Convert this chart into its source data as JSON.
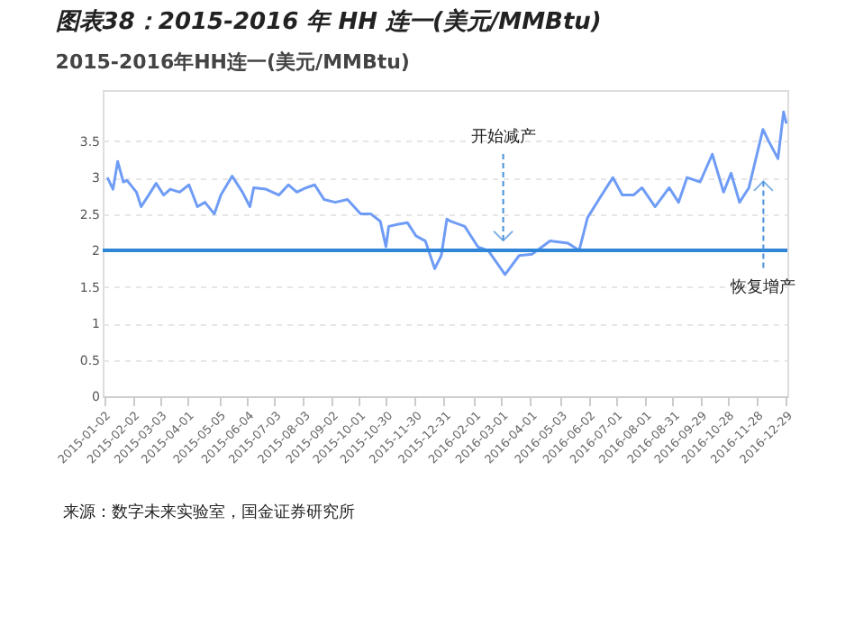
{
  "chart_data": {
    "type": "line",
    "title": "图表38：2015-2016 年 HH 连一(美元/MMBtu)",
    "subtitle": "2015-2016年HH连一(美元/MMBtu)",
    "x": [
      "2015-01-06",
      "2015-01-12",
      "2015-01-17",
      "2015-01-23",
      "2015-01-27",
      "2015-02-06",
      "2015-02-11",
      "2015-02-19",
      "2015-02-27",
      "2015-03-07",
      "2015-03-14",
      "2015-03-24",
      "2015-04-03",
      "2015-04-12",
      "2015-04-20",
      "2015-04-30",
      "2015-05-07",
      "2015-05-19",
      "2015-05-30",
      "2015-06-07",
      "2015-06-11",
      "2015-06-24",
      "2015-07-08",
      "2015-07-18",
      "2015-07-27",
      "2015-08-06",
      "2015-08-15",
      "2015-08-25",
      "2015-09-06",
      "2015-09-19",
      "2015-10-03",
      "2015-10-14",
      "2015-10-24",
      "2015-10-30",
      "2015-11-02",
      "2015-11-12",
      "2015-11-22",
      "2015-12-01",
      "2015-12-11",
      "2015-12-21",
      "2015-12-28",
      "2016-01-03",
      "2016-01-07",
      "2016-01-22",
      "2016-02-05",
      "2016-02-16",
      "2016-03-05",
      "2016-03-20",
      "2016-04-03",
      "2016-04-22",
      "2016-05-11",
      "2016-05-23",
      "2016-06-01",
      "2016-06-15",
      "2016-06-28",
      "2016-07-08",
      "2016-07-20",
      "2016-07-29",
      "2016-08-12",
      "2016-08-27",
      "2016-09-06",
      "2016-09-15",
      "2016-09-29",
      "2016-10-12",
      "2016-10-24",
      "2016-11-01",
      "2016-11-10",
      "2016-11-20",
      "2016-12-05",
      "2016-12-11",
      "2016-12-21",
      "2016-12-27",
      "2016-12-30"
    ],
    "series": [
      {
        "color": "#6f9cf5",
        "values": [
          3.0,
          2.84,
          3.22,
          2.94,
          2.96,
          2.8,
          2.6,
          2.76,
          2.92,
          2.76,
          2.84,
          2.8,
          2.9,
          2.6,
          2.66,
          2.5,
          2.76,
          3.02,
          2.8,
          2.6,
          2.86,
          2.84,
          2.76,
          2.9,
          2.8,
          2.86,
          2.9,
          2.7,
          2.66,
          2.7,
          2.5,
          2.5,
          2.4,
          2.05,
          2.33,
          2.36,
          2.38,
          2.2,
          2.13,
          1.75,
          1.93,
          2.43,
          2.4,
          2.33,
          2.05,
          2.0,
          1.67,
          1.93,
          1.95,
          2.13,
          2.1,
          2.0,
          2.45,
          2.74,
          3.0,
          2.76,
          2.76,
          2.86,
          2.6,
          2.86,
          2.66,
          3.0,
          2.94,
          3.32,
          2.8,
          3.06,
          2.66,
          2.86,
          3.66,
          3.5,
          3.26,
          3.9,
          3.74
        ]
      }
    ],
    "xlim": [
      "2015-01-01",
      "2016-12-31"
    ],
    "xticks": [
      "2015-01-02",
      "2015-02-02",
      "2015-03-03",
      "2015-04-01",
      "2015-05-05",
      "2015-06-04",
      "2015-07-03",
      "2015-08-03",
      "2015-09-02",
      "2015-10-01",
      "2015-10-30",
      "2015-11-30",
      "2015-12-31",
      "2016-02-01",
      "2016-03-01",
      "2016-04-01",
      "2016-05-03",
      "2016-06-02",
      "2016-07-01",
      "2016-08-01",
      "2016-08-31",
      "2016-09-29",
      "2016-10-28",
      "2016-11-28",
      "2016-12-29"
    ],
    "ylim": [
      0,
      4.2
    ],
    "yticks": [
      0,
      0.5,
      1,
      1.5,
      2,
      2.5,
      3,
      3.5
    ],
    "grid": "y",
    "legend": false,
    "marker": "none",
    "line_style": "solid",
    "ref_lines": [
      {
        "axis": "y",
        "value": 2,
        "color": "#2f86d8"
      }
    ],
    "annotations": [
      "开始减产",
      "恢复增产",
      "来源：数字未来实验室，国金证券研究所"
    ]
  }
}
